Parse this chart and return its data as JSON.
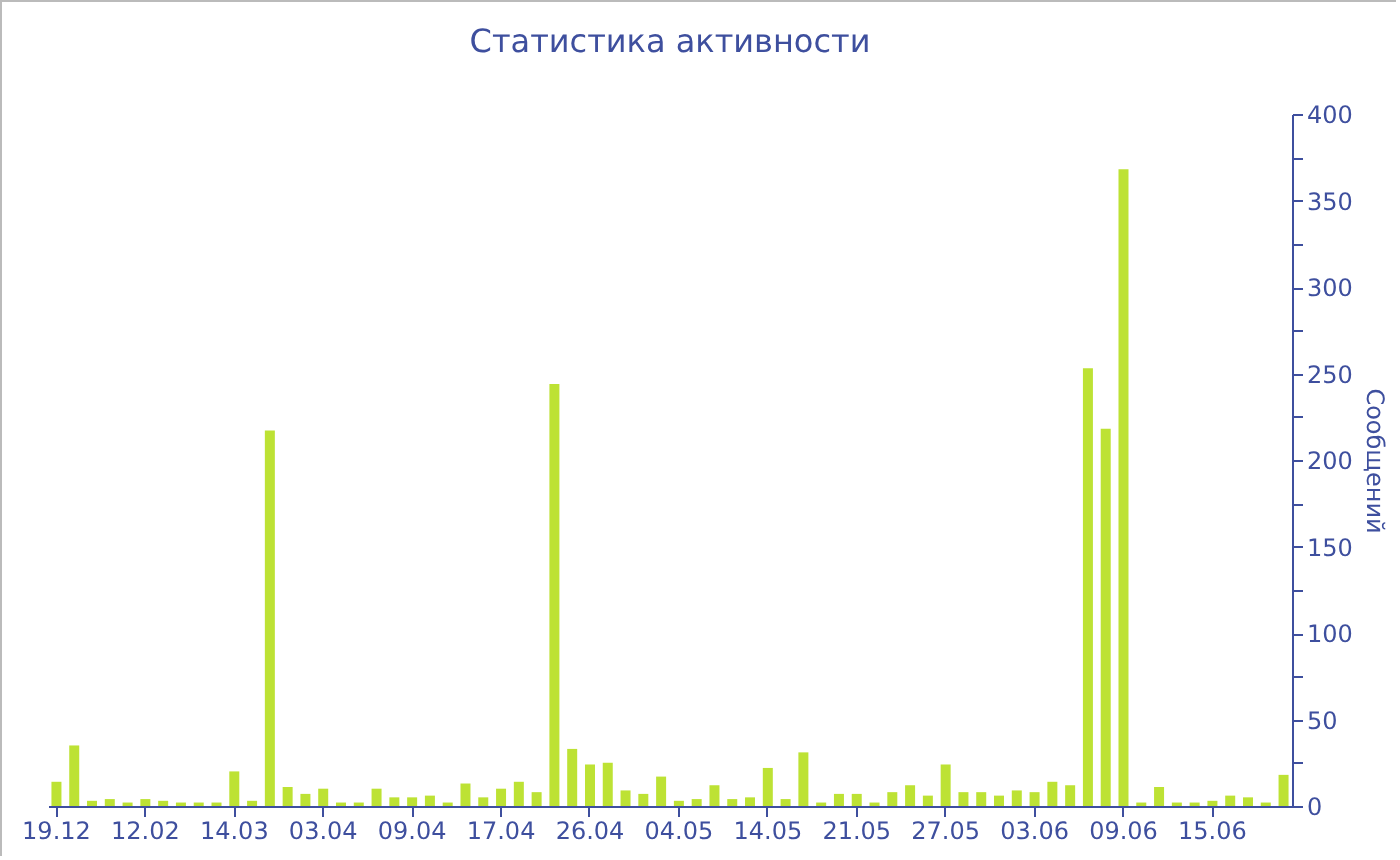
{
  "chart_data": {
    "type": "bar",
    "title": "Статистика активности",
    "ylabel": "Сообщений",
    "categories": [
      "19.12",
      null,
      null,
      null,
      null,
      "12.02",
      null,
      null,
      null,
      null,
      "14.03",
      null,
      null,
      null,
      null,
      "03.04",
      null,
      null,
      null,
      null,
      "09.04",
      null,
      null,
      null,
      null,
      "17.04",
      null,
      null,
      null,
      null,
      "26.04",
      null,
      null,
      null,
      null,
      "04.05",
      null,
      null,
      null,
      null,
      "14.05",
      null,
      null,
      null,
      null,
      "21.05",
      null,
      null,
      null,
      null,
      "27.05",
      null,
      null,
      null,
      null,
      "03.06",
      null,
      null,
      null,
      null,
      "09.06",
      null,
      null,
      null,
      null,
      "15.06",
      null,
      null,
      null,
      null
    ],
    "values": [
      14,
      35,
      3,
      4,
      2,
      4,
      3,
      2,
      2,
      2,
      20,
      3,
      217,
      11,
      7,
      10,
      2,
      2,
      10,
      5,
      5,
      6,
      2,
      13,
      5,
      10,
      14,
      8,
      244,
      33,
      24,
      25,
      9,
      7,
      17,
      3,
      4,
      12,
      4,
      5,
      22,
      4,
      31,
      2,
      7,
      7,
      2,
      8,
      12,
      6,
      24,
      8,
      8,
      6,
      9,
      8,
      14,
      12,
      253,
      218,
      368,
      2,
      11,
      2,
      2,
      3,
      6,
      5,
      2,
      18
    ],
    "color": "#bde234",
    "ylim": [
      0,
      400
    ],
    "yticks": [
      0,
      {
        "value": 25,
        "label": null
      },
      50,
      {
        "value": 75,
        "label": null
      },
      100,
      {
        "value": 125,
        "label": null
      },
      150,
      {
        "value": 175,
        "label": null
      },
      200,
      {
        "value": 225,
        "label": null
      },
      250,
      {
        "value": 275,
        "label": null
      },
      300,
      {
        "value": 325,
        "label": null
      },
      350,
      {
        "value": 375,
        "label": null
      },
      400
    ],
    "grid": false
  }
}
